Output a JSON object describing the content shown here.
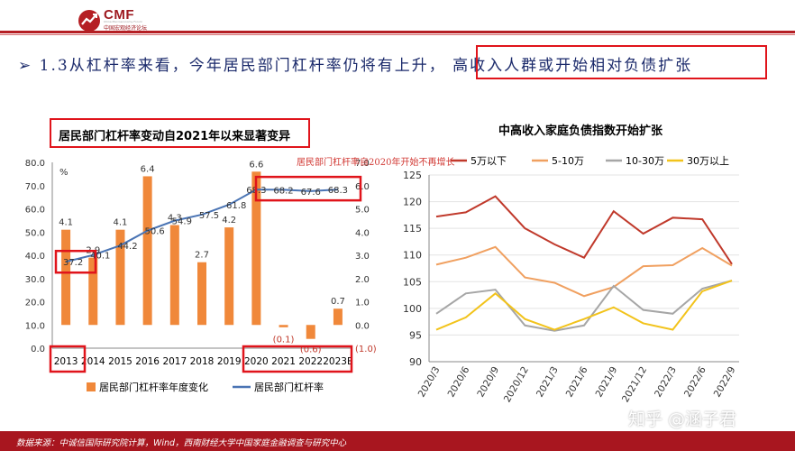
{
  "header": {
    "logo_name": "CMF",
    "logo_sub_en": "China Macroeconomy Forum",
    "logo_sub_cn": "中国宏观经济论坛",
    "accent_color": "#b51f24"
  },
  "headline": {
    "bullet": "➢",
    "text": "1.3从杠杆率来看，今年居民部门杠杆率仍将有上升，",
    "highlight": "高收入人群或开始相对负债扩张"
  },
  "left_chart_title": "居民部门杠杆率变动自2021年以来显著变异",
  "right_chart_title": "中高收入家庭负债指数开始扩张",
  "overlay_note": "居民部门杠杆率自2020年开始不再增长",
  "footer": {
    "source": "数据来源：中诚信国际研究院计算，Wind，西南财经大学中国家庭金融调查与研究中心"
  },
  "watermark": "知乎 @涵子君",
  "chart_data": [
    {
      "type": "bar",
      "title": "居民部门杠杆率变动自2021年以来显著变异",
      "categories": [
        "2013",
        "2014",
        "2015",
        "2016",
        "2017",
        "2018",
        "2019",
        "2020",
        "2021",
        "2022",
        "2023E"
      ],
      "left_unit": "%",
      "left_ylim": [
        0,
        80
      ],
      "left_ticks": [
        "0.0",
        "10.0",
        "20.0",
        "30.0",
        "40.0",
        "50.0",
        "60.0",
        "70.0",
        "80.0"
      ],
      "right_ylim": [
        -1,
        7
      ],
      "right_ticks": [
        "(1.0)",
        "0.0",
        "1.0",
        "2.0",
        "3.0",
        "4.0",
        "5.0",
        "6.0",
        "7.0"
      ],
      "series": [
        {
          "name": "居民部门杠杆率年度变化",
          "type": "bar",
          "axis": "right",
          "color": "#f0883a",
          "values": [
            4.1,
            2.9,
            4.1,
            6.4,
            4.3,
            2.7,
            4.2,
            6.6,
            -0.1,
            -0.6,
            0.7
          ],
          "labels": [
            "4.1",
            "2.9",
            "4.1",
            "6.4",
            "4.3",
            "2.7",
            "4.2",
            "6.6",
            "(0.1)",
            "(0.6)",
            "0.7"
          ]
        },
        {
          "name": "居民部门杠杆率",
          "type": "line",
          "axis": "left",
          "color": "#4a74b4",
          "values": [
            37.2,
            40.1,
            44.2,
            50.6,
            54.9,
            57.5,
            61.8,
            68.3,
            68.2,
            67.6,
            68.3
          ],
          "labels": [
            "37.2",
            "40.1",
            "44.2",
            "50.6",
            "54.9",
            "57.5",
            "61.8",
            "68.3",
            "68.2",
            "67.6",
            "68.3"
          ]
        }
      ],
      "legend_position": "bottom"
    },
    {
      "type": "line",
      "title": "中高收入家庭负债指数开始扩张",
      "categories": [
        "2020/3",
        "2020/6",
        "2020/9",
        "2020/12",
        "2021/3",
        "2021/6",
        "2021/9",
        "2021/12",
        "2022/3",
        "2022/6",
        "2022/9"
      ],
      "ylim": [
        90,
        125
      ],
      "yticks": [
        "90",
        "95",
        "100",
        "105",
        "110",
        "115",
        "120",
        "125"
      ],
      "legend_position": "top",
      "grid": true,
      "series": [
        {
          "name": "5万以下",
          "color": "#c0392b",
          "values": [
            117.2,
            118.0,
            121.0,
            115.0,
            112.0,
            109.5,
            118.2,
            114.0,
            117.0,
            116.7,
            108.3
          ]
        },
        {
          "name": "5-10万",
          "color": "#f0a060",
          "values": [
            108.2,
            109.5,
            111.5,
            105.8,
            104.8,
            102.3,
            104.0,
            107.9,
            108.1,
            111.3,
            108.0
          ]
        },
        {
          "name": "10-30万",
          "color": "#a6a6a6",
          "values": [
            99.0,
            102.8,
            103.5,
            96.8,
            95.8,
            96.8,
            104.2,
            99.7,
            99.0,
            103.7,
            105.2
          ]
        },
        {
          "name": "30万以上",
          "color": "#f2c31b",
          "values": [
            96.0,
            98.3,
            102.8,
            98.0,
            96.0,
            98.0,
            100.2,
            97.2,
            96.0,
            103.2,
            105.2
          ]
        }
      ]
    }
  ]
}
